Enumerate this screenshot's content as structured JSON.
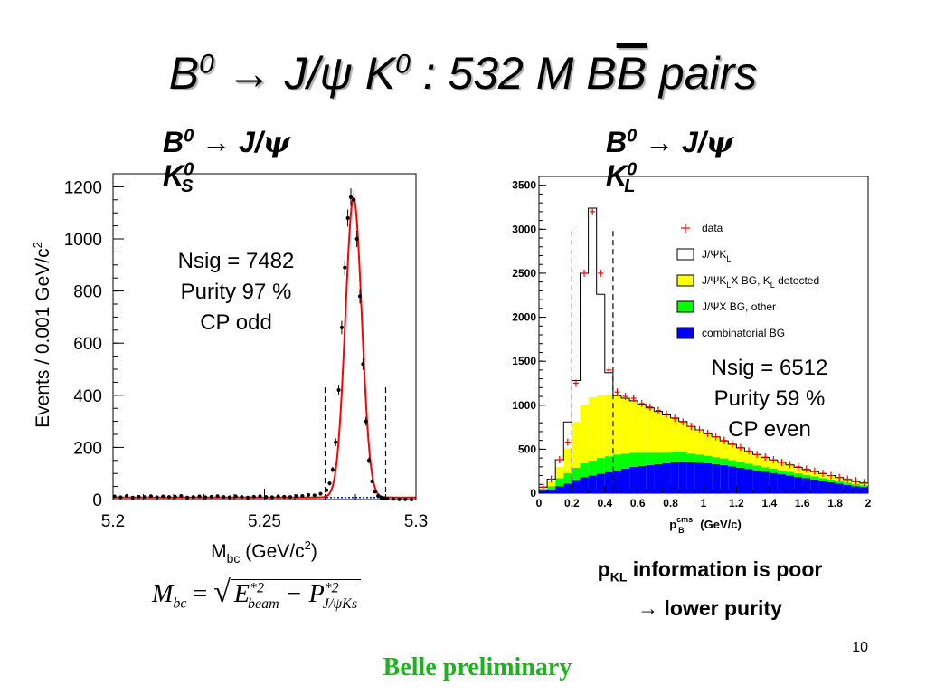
{
  "slide": {
    "title_b": "B",
    "title_b_sup": "0",
    "title_arrow": "→",
    "title_rest": " J/ψ K",
    "title_k_sup": "0",
    "title_colon": " : 532 M B",
    "title_bbar": "B",
    "title_pairs": " pairs",
    "page_number": "10",
    "footer": "Belle preliminary"
  },
  "left_panel": {
    "subtitle_b": "B",
    "subtitle_b_sup": "0",
    "subtitle_arrow": "→",
    "subtitle_mid": " J/",
    "subtitle_psi": "ψ",
    "subtitle_k": " K",
    "subtitle_k_sup": "0",
    "subtitle_k_sub": "S",
    "note_lines": [
      "Nsig = 7482",
      "Purity 97 %",
      "CP odd"
    ],
    "formula_lhs": "M",
    "formula_lhs_sub": "bc",
    "formula_eq": " = ",
    "formula_e": "E",
    "formula_e_sup": "*2",
    "formula_e_sub": "beam",
    "formula_minus": " − P",
    "formula_p_sup": "*2",
    "formula_p_sub": "J/ψKs"
  },
  "right_panel": {
    "subtitle_b": "B",
    "subtitle_b_sup": "0",
    "subtitle_arrow": "→",
    "subtitle_mid": " J/",
    "subtitle_psi": "ψ",
    "subtitle_k": " K",
    "subtitle_k_sup": "0",
    "subtitle_k_sub": "L",
    "note_lines": [
      "Nsig = 6512",
      "Purity 59 %",
      "CP even"
    ],
    "poor_p": "p",
    "poor_sub": "KL",
    "poor_line1_rest": " information is poor",
    "poor_line2": "→ lower purity"
  },
  "colors": {
    "fit_red": "#ff0000",
    "bg_blue_dotted": "#0000ff",
    "yellow": "#ffff00",
    "green": "#00ff00",
    "blue": "#0000ff",
    "footer_green": "#1db31d"
  },
  "chart_data": [
    {
      "type": "scatter",
      "name_in_image": "Mbc distribution",
      "xlabel": "M_bc (GeV/c^2)",
      "xlabel_main": "M",
      "xlabel_sub": "bc",
      "xlabel_rest": " (GeV/c",
      "xlabel_sup": "2",
      "xlabel_end": ")",
      "ylabel": "Events / 0.001 GeV/c^2",
      "ylabel_main": "Events / 0.001 GeV/c",
      "ylabel_sup": "2",
      "xlim": [
        5.2,
        5.3
      ],
      "ylim": [
        0,
        1250
      ],
      "xticks": [
        5.2,
        5.25,
        5.3
      ],
      "xtick_labels": [
        "5.2",
        "5.25",
        "5.3"
      ],
      "yticks": [
        0,
        200,
        400,
        600,
        800,
        1000,
        1200
      ],
      "ytick_labels": [
        "0",
        "200",
        "400",
        "600",
        "800",
        "1000",
        "1200"
      ],
      "signal_window": [
        5.27,
        5.29
      ],
      "fit": {
        "mean": 5.2794,
        "sigma": 0.0027,
        "peak": 1150,
        "background": 8
      },
      "x": [
        5.2005,
        5.2025,
        5.2045,
        5.2065,
        5.2085,
        5.2105,
        5.2125,
        5.2145,
        5.2165,
        5.2185,
        5.2205,
        5.2225,
        5.2245,
        5.2265,
        5.2285,
        5.2305,
        5.2325,
        5.2345,
        5.2365,
        5.2385,
        5.2405,
        5.2425,
        5.2445,
        5.2465,
        5.2485,
        5.2505,
        5.2525,
        5.2545,
        5.2565,
        5.2585,
        5.2605,
        5.2625,
        5.2645,
        5.2665,
        5.2685,
        5.2705,
        5.2715,
        5.2725,
        5.2735,
        5.2745,
        5.2755,
        5.2765,
        5.2775,
        5.2785,
        5.2795,
        5.2805,
        5.2815,
        5.2825,
        5.2835,
        5.2845,
        5.2855,
        5.2865,
        5.2875,
        5.2885,
        5.2895,
        5.2905,
        5.2925,
        5.2945,
        5.2965,
        5.2985
      ],
      "y": [
        12,
        9,
        14,
        8,
        11,
        10,
        13,
        9,
        12,
        10,
        11,
        14,
        8,
        10,
        12,
        9,
        11,
        13,
        10,
        9,
        12,
        10,
        8,
        11,
        13,
        10,
        9,
        12,
        11,
        10,
        13,
        14,
        18,
        16,
        22,
        36,
        62,
        115,
        220,
        420,
        660,
        890,
        1080,
        1160,
        1150,
        1000,
        780,
        520,
        300,
        150,
        70,
        30,
        14,
        8,
        5,
        3,
        2,
        1,
        1,
        0
      ]
    },
    {
      "type": "bar",
      "stacked": true,
      "name_in_image": "p_B cms distribution",
      "xlabel": "p_B^cms (GeV/c)",
      "xlabel_main": "p",
      "xlabel_sup": "cms",
      "xlabel_sub": "B",
      "xlabel_rest": " (GeV/c)",
      "xlim": [
        0,
        2
      ],
      "ylim": [
        0,
        3600
      ],
      "xticks": [
        0,
        0.2,
        0.4,
        0.6,
        0.8,
        1,
        1.2,
        1.4,
        1.6,
        1.8,
        2
      ],
      "xtick_labels": [
        "0",
        "0.2",
        "0.4",
        "0.6",
        "0.8",
        "1",
        "1.2",
        "1.4",
        "1.6",
        "1.8",
        "2"
      ],
      "yticks": [
        0,
        500,
        1000,
        1500,
        2000,
        2500,
        3000,
        3500
      ],
      "ytick_labels": [
        "0",
        "500",
        "1000",
        "1500",
        "2000",
        "2500",
        "3000",
        "3500"
      ],
      "signal_window": [
        0.2,
        0.45
      ],
      "legend": {
        "placement": "top-right",
        "entries": [
          {
            "label_main": "data",
            "label_sub": "",
            "label_rest": "",
            "marker": "cross-red"
          },
          {
            "label_main": "J/ΨK",
            "label_sub": "L",
            "label_rest": "",
            "marker": "box-white"
          },
          {
            "label_main": "J/ΨK",
            "label_sub": "L",
            "label_rest": "X BG, K",
            "label_sub2": "L",
            "label_end": " detected",
            "marker": "box-yellow"
          },
          {
            "label_main": "J/ΨX BG, other",
            "label_sub": "",
            "label_rest": "",
            "marker": "box-green"
          },
          {
            "label_main": "combinatorial BG",
            "label_sub": "",
            "label_rest": "",
            "marker": "box-blue"
          }
        ]
      },
      "bin_width": 0.05,
      "bin_starts": [
        0,
        0.05,
        0.1,
        0.15,
        0.2,
        0.25,
        0.3,
        0.35,
        0.4,
        0.45,
        0.5,
        0.55,
        0.6,
        0.65,
        0.7,
        0.75,
        0.8,
        0.85,
        0.9,
        0.95,
        1.0,
        1.05,
        1.1,
        1.15,
        1.2,
        1.25,
        1.3,
        1.35,
        1.4,
        1.45,
        1.5,
        1.55,
        1.6,
        1.65,
        1.7,
        1.75,
        1.8,
        1.85,
        1.9,
        1.95
      ],
      "series": [
        {
          "name": "combinatorial BG",
          "values": [
            30,
            40,
            80,
            110,
            150,
            180,
            200,
            220,
            240,
            260,
            280,
            300,
            310,
            320,
            330,
            340,
            350,
            355,
            350,
            345,
            340,
            330,
            320,
            305,
            290,
            275,
            260,
            245,
            230,
            215,
            200,
            185,
            170,
            155,
            140,
            125,
            110,
            95,
            80,
            70
          ]
        },
        {
          "name": "J/ΨX BG, other",
          "values": [
            20,
            40,
            90,
            120,
            140,
            160,
            170,
            180,
            180,
            180,
            170,
            160,
            150,
            140,
            130,
            120,
            115,
            110,
            100,
            95,
            85,
            80,
            75,
            70,
            65,
            60,
            55,
            50,
            48,
            45,
            42,
            40,
            38,
            35,
            32,
            30,
            28,
            25,
            22,
            20
          ]
        },
        {
          "name": "J/ΨK_L X BG, K_L detected",
          "values": [
            20,
            60,
            130,
            280,
            520,
            660,
            720,
            710,
            700,
            670,
            630,
            590,
            550,
            510,
            470,
            430,
            390,
            350,
            310,
            280,
            250,
            230,
            200,
            180,
            160,
            140,
            125,
            110,
            100,
            90,
            80,
            70,
            60,
            55,
            50,
            45,
            40,
            35,
            30,
            25
          ]
        },
        {
          "name": "J/ΨK_L",
          "values": [
            0,
            20,
            80,
            300,
            470,
            1500,
            2150,
            1150,
            250,
            0,
            0,
            0,
            0,
            0,
            0,
            0,
            0,
            0,
            0,
            0,
            0,
            0,
            0,
            0,
            0,
            0,
            0,
            0,
            0,
            0,
            0,
            0,
            0,
            0,
            0,
            0,
            0,
            0,
            0,
            0
          ]
        }
      ],
      "data_points": {
        "x": [
          0.025,
          0.075,
          0.125,
          0.175,
          0.225,
          0.275,
          0.325,
          0.375,
          0.425,
          0.475,
          0.525,
          0.575,
          0.625,
          0.675,
          0.725,
          0.775,
          0.825,
          0.875,
          0.925,
          0.975,
          1.025,
          1.075,
          1.125,
          1.175,
          1.225,
          1.275,
          1.325,
          1.375,
          1.425,
          1.475,
          1.525,
          1.575,
          1.625,
          1.675,
          1.725,
          1.775,
          1.825,
          1.875,
          1.925,
          1.975
        ],
        "y": [
          70,
          160,
          380,
          580,
          1250,
          2500,
          3200,
          2500,
          1400,
          1150,
          1100,
          1080,
          1020,
          980,
          940,
          900,
          850,
          810,
          760,
          720,
          680,
          640,
          600,
          560,
          520,
          480,
          440,
          410,
          380,
          350,
          325,
          300,
          275,
          250,
          225,
          200,
          180,
          160,
          140,
          120
        ]
      }
    }
  ]
}
